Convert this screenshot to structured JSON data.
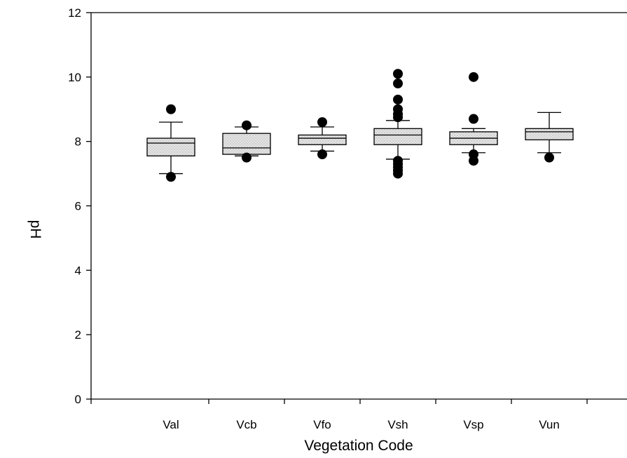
{
  "chart_data": {
    "type": "box",
    "title": "",
    "xlabel": "Vegetation Code",
    "ylabel": "pH",
    "ylim": [
      0,
      12
    ],
    "yticks": [
      0,
      2,
      4,
      6,
      8,
      10,
      12
    ],
    "grid": false,
    "categories": [
      "Val",
      "Vcb",
      "Vfo",
      "Vsh",
      "Vsp",
      "Vun"
    ],
    "boxes": [
      {
        "category": "Val",
        "q1": 7.55,
        "median": 7.95,
        "q3": 8.1,
        "whisker_low": 7.0,
        "whisker_high": 8.6,
        "outliers": [
          9.0,
          6.9
        ]
      },
      {
        "category": "Vcb",
        "q1": 7.6,
        "median": 7.8,
        "q3": 8.25,
        "whisker_low": 7.55,
        "whisker_high": 8.45,
        "outliers": [
          8.5,
          7.5
        ]
      },
      {
        "category": "Vfo",
        "q1": 7.9,
        "median": 8.1,
        "q3": 8.2,
        "whisker_low": 7.7,
        "whisker_high": 8.45,
        "outliers": [
          8.6,
          7.6
        ]
      },
      {
        "category": "Vsh",
        "q1": 7.9,
        "median": 8.2,
        "q3": 8.4,
        "whisker_low": 7.45,
        "whisker_high": 8.65,
        "outliers": [
          10.1,
          9.8,
          9.3,
          9.0,
          8.85,
          8.75,
          7.4,
          7.3,
          7.2,
          7.1,
          7.0
        ]
      },
      {
        "category": "Vsp",
        "q1": 7.9,
        "median": 8.1,
        "q3": 8.3,
        "whisker_low": 7.65,
        "whisker_high": 8.4,
        "outliers": [
          10.0,
          8.7,
          7.6,
          7.4
        ]
      },
      {
        "category": "Vun",
        "q1": 8.05,
        "median": 8.3,
        "q3": 8.4,
        "whisker_low": 7.65,
        "whisker_high": 8.9,
        "outliers": [
          7.5
        ]
      }
    ],
    "colors": {
      "box_fill": "#dcdcdc",
      "stroke": "#000000",
      "outlier": "#000000",
      "background": "#ffffff"
    }
  }
}
